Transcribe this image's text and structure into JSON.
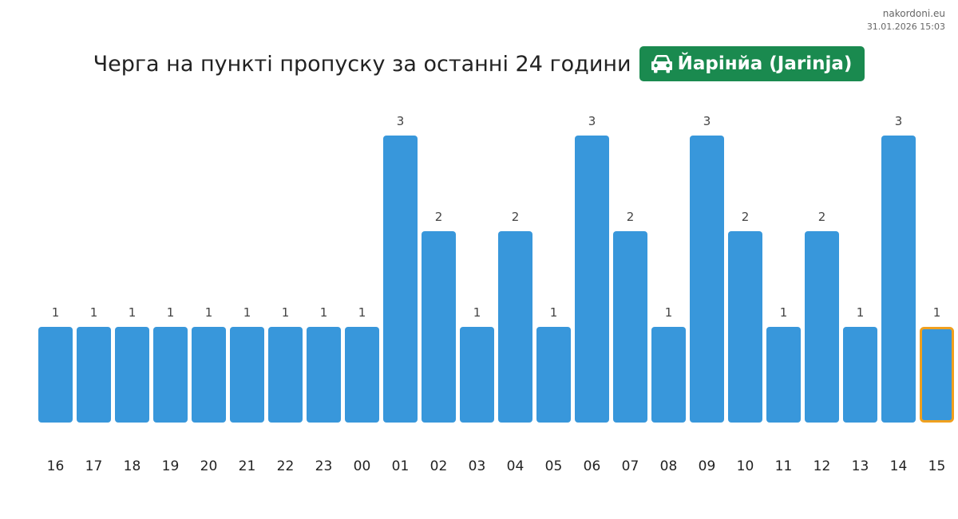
{
  "site": "nakordoni.eu",
  "timestamp": "31.01.2026 15:03",
  "title": "Черга на пункті пропуску за останні 24 години",
  "badge": {
    "icon": "car-icon",
    "label": "Йарінйа (Jarinja)",
    "color": "#1a8a4f"
  },
  "chart_data": {
    "type": "bar",
    "categories": [
      "16",
      "17",
      "18",
      "19",
      "20",
      "21",
      "22",
      "23",
      "00",
      "01",
      "02",
      "03",
      "04",
      "05",
      "06",
      "07",
      "08",
      "09",
      "10",
      "11",
      "12",
      "13",
      "14",
      "15"
    ],
    "values": [
      1,
      1,
      1,
      1,
      1,
      1,
      1,
      1,
      1,
      3,
      2,
      1,
      2,
      1,
      3,
      2,
      1,
      3,
      2,
      1,
      2,
      1,
      3,
      1
    ],
    "ylim": [
      0,
      3
    ],
    "grid": false,
    "bar_color": "#3897db",
    "highlight_index": 23,
    "highlight_color": "#f0a01e"
  }
}
